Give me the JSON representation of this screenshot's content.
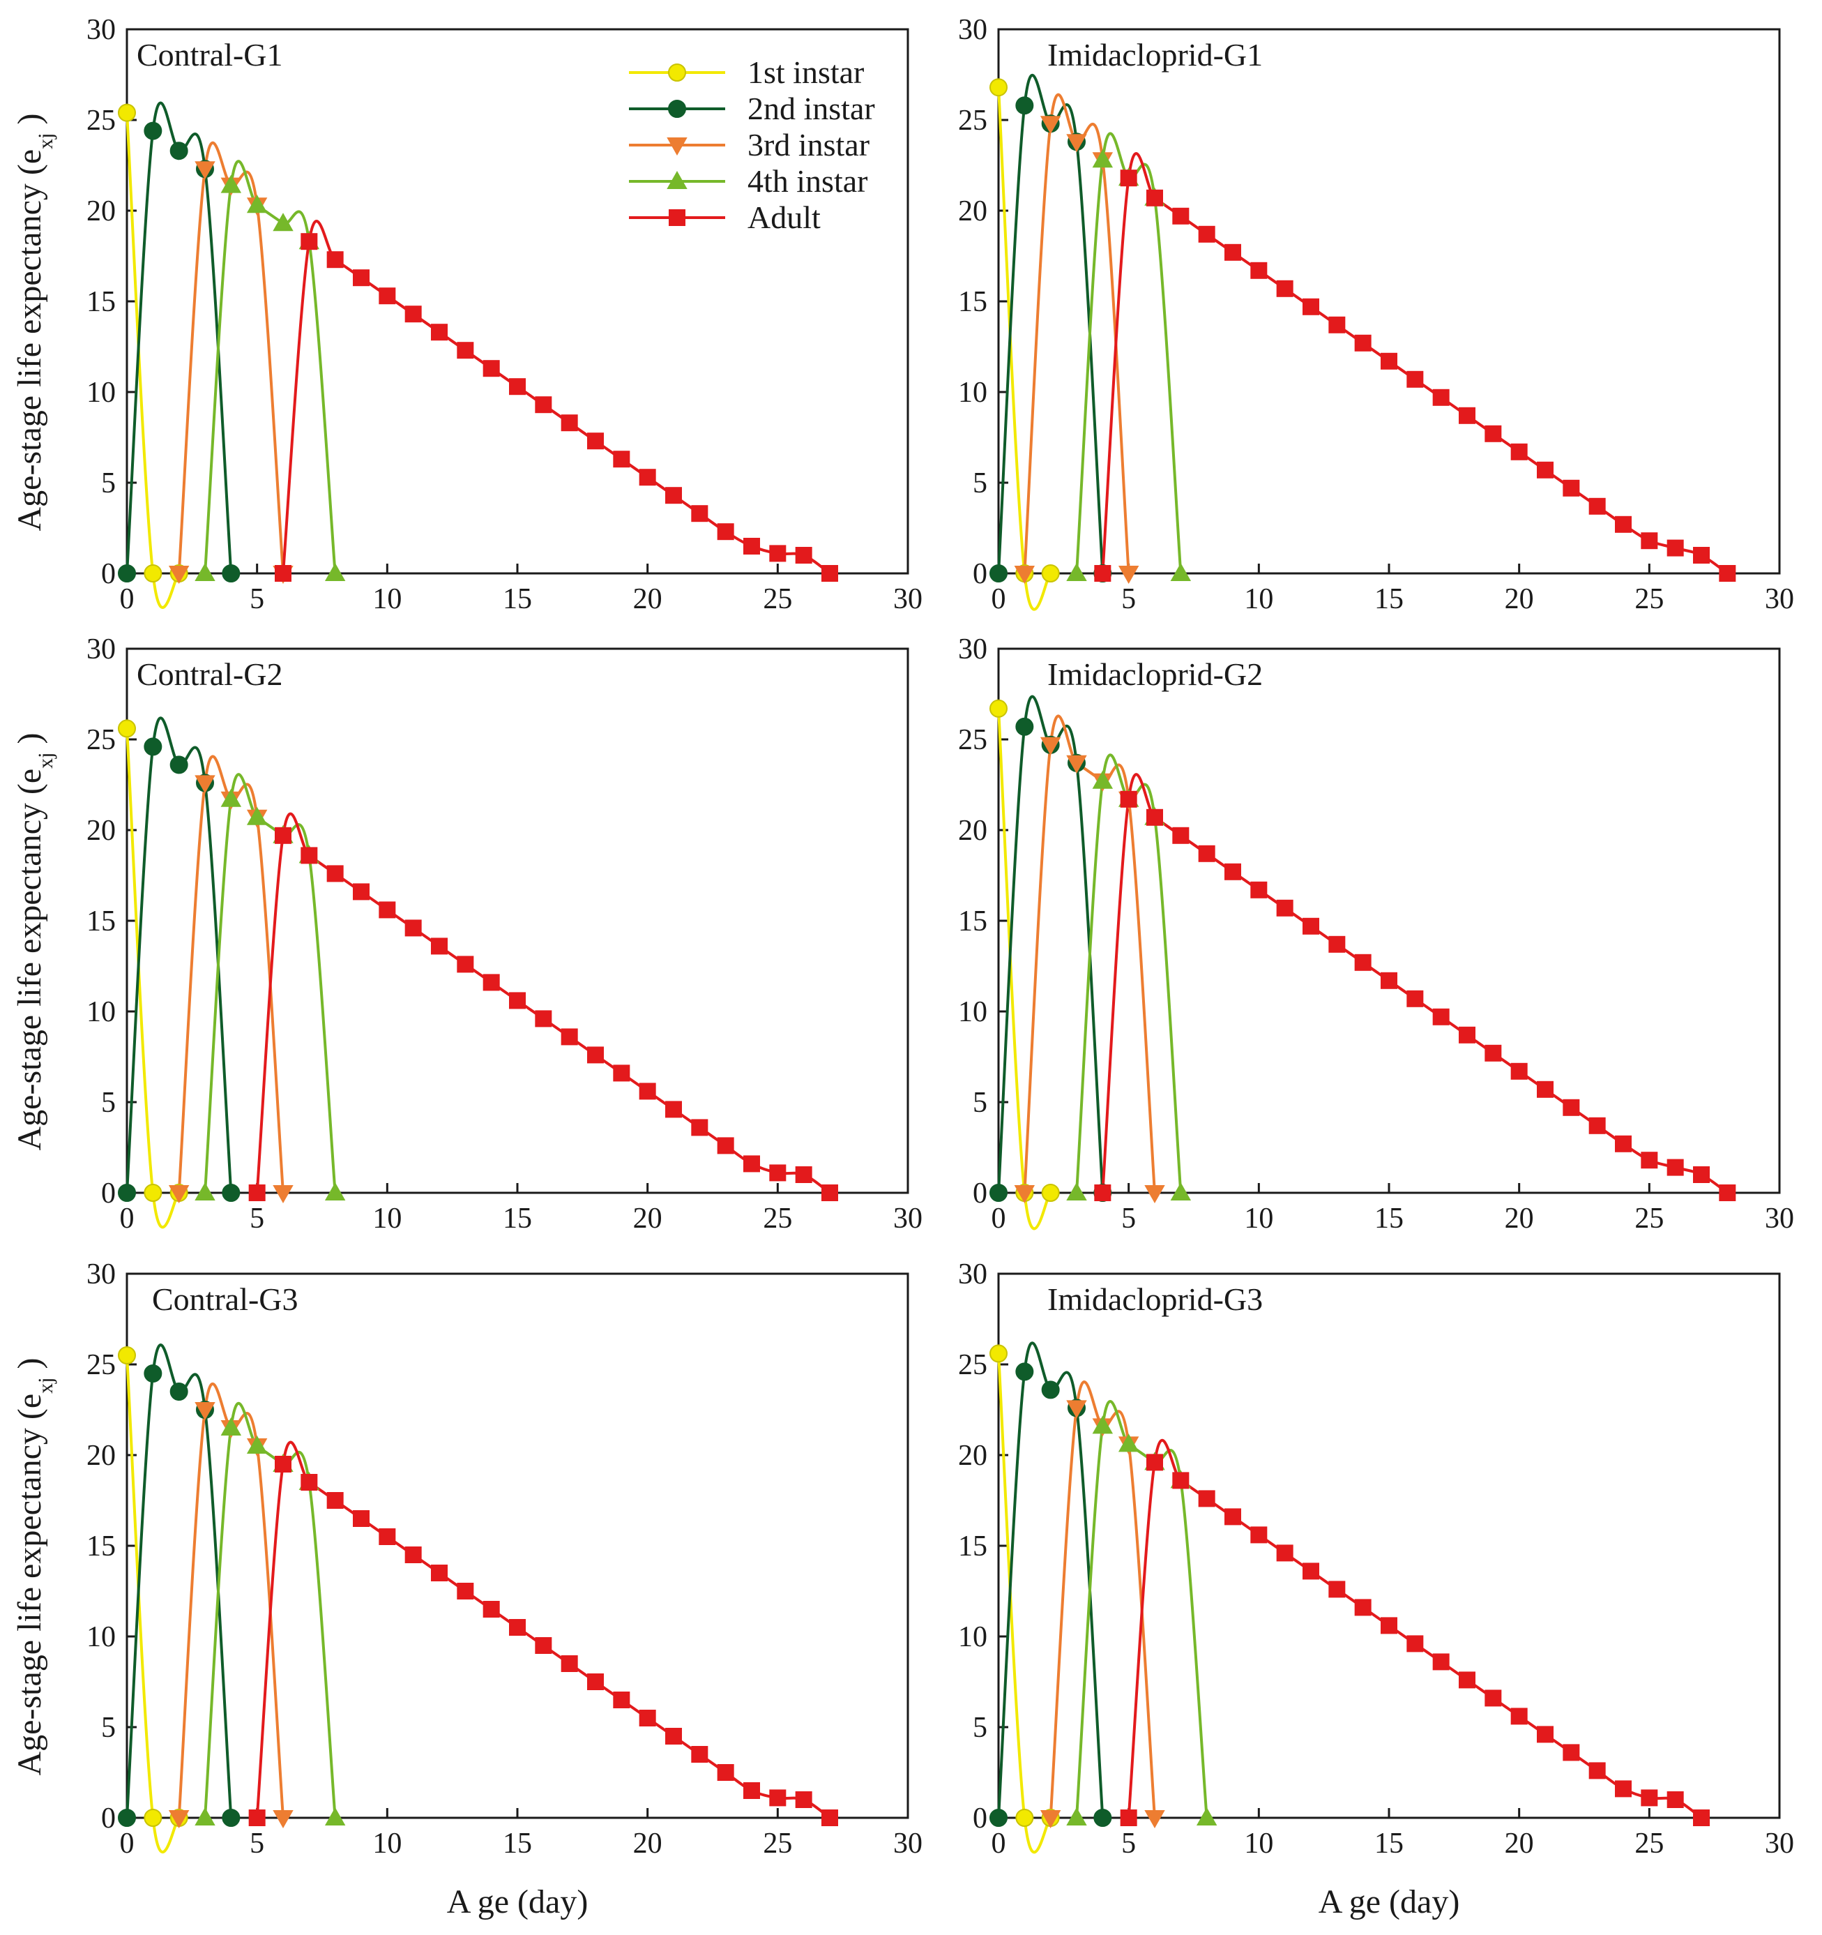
{
  "figure": {
    "ylabel": "Age-stage life expectancy (e",
    "ylabel_subscript": "xj",
    "ylabel_close": ")",
    "xlabel": "A ge (day)"
  },
  "legend": {
    "entries": [
      {
        "label": "1st instar",
        "series_color": "#f2e900",
        "edge_color": "#c9c300",
        "marker": "circle"
      },
      {
        "label": "2nd instar",
        "series_color": "#0f5c2a",
        "edge_color": "#0f5c2a",
        "marker": "circle"
      },
      {
        "label": "3rd instar",
        "series_color": "#ed7d31",
        "edge_color": "#ed7d31",
        "marker": "triangle-down"
      },
      {
        "label": "4th instar",
        "series_color": "#76b82a",
        "edge_color": "#76b82a",
        "marker": "triangle-up"
      },
      {
        "label": "Adult",
        "series_color": "#e31a1c",
        "edge_color": "#e31a1c",
        "marker": "square"
      }
    ]
  },
  "chart_data": [
    {
      "type": "line",
      "title": "Contral-G1",
      "xlim": [
        0,
        30
      ],
      "ylim": [
        0,
        30
      ],
      "xticks": [
        "0",
        "5",
        "10",
        "15",
        "20",
        "25",
        "30"
      ],
      "yticks": [
        "0",
        "5",
        "10",
        "15",
        "20",
        "25",
        "30"
      ],
      "series": [
        {
          "name": "1st instar",
          "x": [
            0,
            1,
            2
          ],
          "y": [
            25.4,
            0,
            0
          ]
        },
        {
          "name": "2nd instar",
          "x": [
            0,
            1,
            2,
            3,
            4
          ],
          "y": [
            0,
            24.4,
            23.3,
            22.3,
            0
          ]
        },
        {
          "name": "3rd instar",
          "x": [
            2,
            3,
            4,
            5,
            6
          ],
          "y": [
            0,
            22.3,
            21.4,
            20.3,
            0
          ]
        },
        {
          "name": "4th instar",
          "x": [
            3,
            4,
            5,
            6,
            7,
            8
          ],
          "y": [
            0,
            21.4,
            20.3,
            19.3,
            18.3,
            0
          ]
        },
        {
          "name": "Adult",
          "x": [
            6,
            7,
            8,
            9,
            10,
            11,
            12,
            13,
            14,
            15,
            16,
            17,
            18,
            19,
            20,
            21,
            22,
            23,
            24,
            25,
            26,
            27
          ],
          "y": [
            0,
            18.3,
            17.3,
            16.3,
            15.3,
            14.3,
            13.3,
            12.3,
            11.3,
            10.3,
            9.3,
            8.3,
            7.3,
            6.3,
            5.3,
            4.3,
            3.3,
            2.3,
            1.5,
            1.1,
            1.0,
            0
          ]
        }
      ]
    },
    {
      "type": "line",
      "title": "Imidacloprid-G1",
      "xlim": [
        0,
        30
      ],
      "ylim": [
        0,
        30
      ],
      "xticks": [
        "0",
        "5",
        "10",
        "15",
        "20",
        "25",
        "30"
      ],
      "yticks": [
        "0",
        "5",
        "10",
        "15",
        "20",
        "25",
        "30"
      ],
      "series": [
        {
          "name": "1st instar",
          "x": [
            0,
            1,
            2
          ],
          "y": [
            26.8,
            0,
            0
          ]
        },
        {
          "name": "2nd instar",
          "x": [
            0,
            1,
            2,
            3,
            4
          ],
          "y": [
            0,
            25.8,
            24.8,
            23.8,
            0
          ]
        },
        {
          "name": "3rd instar",
          "x": [
            1,
            2,
            3,
            4,
            5
          ],
          "y": [
            0,
            24.8,
            23.8,
            22.8,
            0
          ]
        },
        {
          "name": "4th instar",
          "x": [
            3,
            4,
            5,
            6,
            7
          ],
          "y": [
            0,
            22.8,
            21.8,
            20.7,
            0
          ]
        },
        {
          "name": "Adult",
          "x": [
            4,
            5,
            6,
            7,
            8,
            9,
            10,
            11,
            12,
            13,
            14,
            15,
            16,
            17,
            18,
            19,
            20,
            21,
            22,
            23,
            24,
            25,
            26,
            27,
            28
          ],
          "y": [
            0,
            21.8,
            20.7,
            19.7,
            18.7,
            17.7,
            16.7,
            15.7,
            14.7,
            13.7,
            12.7,
            11.7,
            10.7,
            9.7,
            8.7,
            7.7,
            6.7,
            5.7,
            4.7,
            3.7,
            2.7,
            1.8,
            1.4,
            1.0,
            0
          ]
        }
      ]
    },
    {
      "type": "line",
      "title": "Contral-G2",
      "xlim": [
        0,
        30
      ],
      "ylim": [
        0,
        30
      ],
      "xticks": [
        "0",
        "5",
        "10",
        "15",
        "20",
        "25",
        "30"
      ],
      "yticks": [
        "0",
        "5",
        "10",
        "15",
        "20",
        "25",
        "30"
      ],
      "series": [
        {
          "name": "1st instar",
          "x": [
            0,
            1,
            2
          ],
          "y": [
            25.6,
            0,
            0
          ]
        },
        {
          "name": "2nd instar",
          "x": [
            0,
            1,
            2,
            3,
            4
          ],
          "y": [
            0,
            24.6,
            23.6,
            22.6,
            0
          ]
        },
        {
          "name": "3rd instar",
          "x": [
            2,
            3,
            4,
            5,
            6
          ],
          "y": [
            0,
            22.6,
            21.7,
            20.7,
            0
          ]
        },
        {
          "name": "4th instar",
          "x": [
            3,
            4,
            5,
            6,
            7,
            8
          ],
          "y": [
            0,
            21.7,
            20.7,
            19.7,
            18.6,
            0
          ]
        },
        {
          "name": "Adult",
          "x": [
            5,
            6,
            7,
            8,
            9,
            10,
            11,
            12,
            13,
            14,
            15,
            16,
            17,
            18,
            19,
            20,
            21,
            22,
            23,
            24,
            25,
            26,
            27
          ],
          "y": [
            0,
            19.7,
            18.6,
            17.6,
            16.6,
            15.6,
            14.6,
            13.6,
            12.6,
            11.6,
            10.6,
            9.6,
            8.6,
            7.6,
            6.6,
            5.6,
            4.6,
            3.6,
            2.6,
            1.6,
            1.1,
            1.0,
            0
          ]
        }
      ]
    },
    {
      "type": "line",
      "title": "Imidacloprid-G2",
      "xlim": [
        0,
        30
      ],
      "ylim": [
        0,
        30
      ],
      "xticks": [
        "0",
        "5",
        "10",
        "15",
        "20",
        "25",
        "30"
      ],
      "yticks": [
        "0",
        "5",
        "10",
        "15",
        "20",
        "25",
        "30"
      ],
      "series": [
        {
          "name": "1st instar",
          "x": [
            0,
            1,
            2
          ],
          "y": [
            26.7,
            0,
            0
          ]
        },
        {
          "name": "2nd instar",
          "x": [
            0,
            1,
            2,
            3,
            4
          ],
          "y": [
            0,
            25.7,
            24.7,
            23.7,
            0
          ]
        },
        {
          "name": "3rd instar",
          "x": [
            1,
            2,
            3,
            4,
            5,
            6
          ],
          "y": [
            0,
            24.7,
            23.7,
            22.7,
            21.7,
            0
          ]
        },
        {
          "name": "4th instar",
          "x": [
            3,
            4,
            5,
            6,
            7
          ],
          "y": [
            0,
            22.7,
            21.7,
            20.7,
            0
          ]
        },
        {
          "name": "Adult",
          "x": [
            4,
            5,
            6,
            7,
            8,
            9,
            10,
            11,
            12,
            13,
            14,
            15,
            16,
            17,
            18,
            19,
            20,
            21,
            22,
            23,
            24,
            25,
            26,
            27,
            28
          ],
          "y": [
            0,
            21.7,
            20.7,
            19.7,
            18.7,
            17.7,
            16.7,
            15.7,
            14.7,
            13.7,
            12.7,
            11.7,
            10.7,
            9.7,
            8.7,
            7.7,
            6.7,
            5.7,
            4.7,
            3.7,
            2.7,
            1.8,
            1.4,
            1.0,
            0
          ]
        }
      ]
    },
    {
      "type": "line",
      "title": "Contral-G3",
      "xlim": [
        0,
        30
      ],
      "ylim": [
        0,
        30
      ],
      "xticks": [
        "0",
        "5",
        "10",
        "15",
        "20",
        "25",
        "30"
      ],
      "yticks": [
        "0",
        "5",
        "10",
        "15",
        "20",
        "25",
        "30"
      ],
      "series": [
        {
          "name": "1st instar",
          "x": [
            0,
            1,
            2
          ],
          "y": [
            25.5,
            0,
            0
          ]
        },
        {
          "name": "2nd instar",
          "x": [
            0,
            1,
            2,
            3,
            4
          ],
          "y": [
            0,
            24.5,
            23.5,
            22.5,
            0
          ]
        },
        {
          "name": "3rd instar",
          "x": [
            2,
            3,
            4,
            5,
            6
          ],
          "y": [
            0,
            22.5,
            21.5,
            20.5,
            0
          ]
        },
        {
          "name": "4th instar",
          "x": [
            3,
            4,
            5,
            6,
            7,
            8
          ],
          "y": [
            0,
            21.5,
            20.5,
            19.5,
            18.5,
            0
          ]
        },
        {
          "name": "Adult",
          "x": [
            5,
            6,
            7,
            8,
            9,
            10,
            11,
            12,
            13,
            14,
            15,
            16,
            17,
            18,
            19,
            20,
            21,
            22,
            23,
            24,
            25,
            26,
            27
          ],
          "y": [
            0,
            19.5,
            18.5,
            17.5,
            16.5,
            15.5,
            14.5,
            13.5,
            12.5,
            11.5,
            10.5,
            9.5,
            8.5,
            7.5,
            6.5,
            5.5,
            4.5,
            3.5,
            2.5,
            1.5,
            1.1,
            1.0,
            0
          ]
        }
      ]
    },
    {
      "type": "line",
      "title": "Imidacloprid-G3",
      "xlim": [
        0,
        30
      ],
      "ylim": [
        0,
        30
      ],
      "xticks": [
        "0",
        "5",
        "10",
        "15",
        "20",
        "25",
        "30"
      ],
      "yticks": [
        "0",
        "5",
        "10",
        "15",
        "20",
        "25",
        "30"
      ],
      "series": [
        {
          "name": "1st instar",
          "x": [
            0,
            1,
            2
          ],
          "y": [
            25.6,
            0,
            0
          ]
        },
        {
          "name": "2nd instar",
          "x": [
            0,
            1,
            2,
            3,
            4
          ],
          "y": [
            0,
            24.6,
            23.6,
            22.6,
            0
          ]
        },
        {
          "name": "3rd instar",
          "x": [
            2,
            3,
            4,
            5,
            6
          ],
          "y": [
            0,
            22.6,
            21.6,
            20.6,
            0
          ]
        },
        {
          "name": "4th instar",
          "x": [
            3,
            4,
            5,
            6,
            7,
            8
          ],
          "y": [
            0,
            21.6,
            20.6,
            19.6,
            18.6,
            0
          ]
        },
        {
          "name": "Adult",
          "x": [
            5,
            6,
            7,
            8,
            9,
            10,
            11,
            12,
            13,
            14,
            15,
            16,
            17,
            18,
            19,
            20,
            21,
            22,
            23,
            24,
            25,
            26,
            27
          ],
          "y": [
            0,
            19.6,
            18.6,
            17.6,
            16.6,
            15.6,
            14.6,
            13.6,
            12.6,
            11.6,
            10.6,
            9.6,
            8.6,
            7.6,
            6.6,
            5.6,
            4.6,
            3.6,
            2.6,
            1.6,
            1.1,
            1.0,
            0
          ]
        }
      ]
    }
  ]
}
